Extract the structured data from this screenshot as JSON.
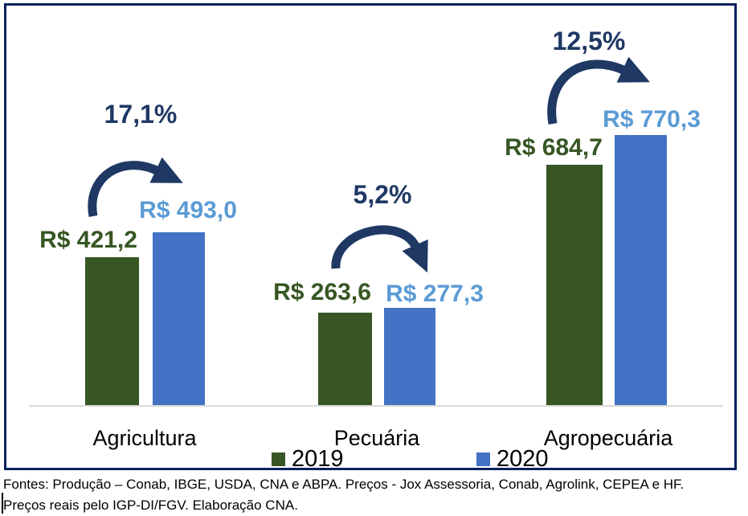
{
  "chart_data": {
    "type": "bar",
    "categories": [
      "Agricultura",
      "Pecuária",
      "Agropecuária"
    ],
    "series": [
      {
        "name": "2019",
        "color": "#375623",
        "values": [
          421.2,
          263.6,
          684.7
        ],
        "value_labels": [
          "R$ 421,2",
          "R$ 263,6",
          "R$ 684,7"
        ]
      },
      {
        "name": "2020",
        "color": "#4472c4",
        "values": [
          493.0,
          277.3,
          770.3
        ],
        "value_labels": [
          "R$ 493,0",
          "R$ 277,3",
          "R$ 770,3"
        ]
      }
    ],
    "annotations": [
      {
        "group": "Agricultura",
        "pct_change": "17,1%"
      },
      {
        "group": "Pecuária",
        "pct_change": "5,2%"
      },
      {
        "group": "Agropecuária",
        "pct_change": "12,5%"
      }
    ],
    "value_label_colors": {
      "2019": "#375623",
      "2020": "#5b9bd5"
    },
    "annotation_color": "#1f3864",
    "legend_position": "bottom",
    "grid": false,
    "x_axis_baseline_color": "#d9d9d9",
    "frame_border_color": "#03205e"
  },
  "legend": {
    "items": [
      {
        "label": "2019",
        "color": "#375623"
      },
      {
        "label": "2020",
        "color": "#4472c4"
      }
    ]
  },
  "footer": {
    "line1": "Fontes: Produção – Conab, IBGE, USDA, CNA e ABPA. Preços - Jox Assessoria, Conab, Agrolink, CEPEA e HF.",
    "line2": "Preços reais pelo IGP-DI/FGV. Elaboração CNA."
  }
}
